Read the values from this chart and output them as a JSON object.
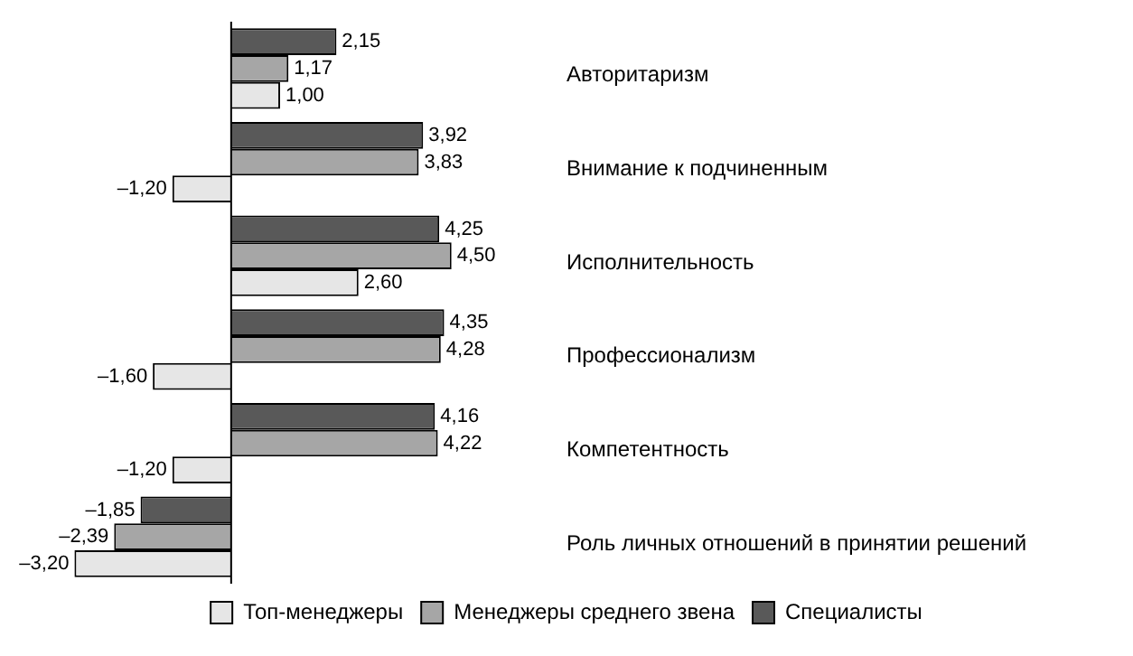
{
  "chart_data": {
    "type": "bar",
    "orientation": "horizontal",
    "categories": [
      "Авторитаризм",
      "Внимание к подчиненным",
      "Исполнительность",
      "Профессионализм",
      "Компетентность",
      "Роль личных отношений в принятии решений"
    ],
    "series": [
      {
        "name": "Топ-менеджеры",
        "color": "#e6e6e6",
        "values": [
          1.0,
          -1.2,
          2.6,
          -1.6,
          -1.2,
          -3.2
        ],
        "value_labels": [
          "1,00",
          "–1,20",
          "2,60",
          "–1,60",
          "–1,20",
          "–3,20"
        ]
      },
      {
        "name": "Менеджеры среднего звена",
        "color": "#a6a6a6",
        "values": [
          1.17,
          3.83,
          4.5,
          4.28,
          4.22,
          -2.39
        ],
        "value_labels": [
          "1,17",
          "3,83",
          "4,50",
          "4,28",
          "4,22",
          "–2,39"
        ]
      },
      {
        "name": "Специалисты",
        "color": "#595959",
        "values": [
          2.15,
          3.92,
          4.25,
          4.35,
          4.16,
          -1.85
        ],
        "value_labels": [
          "2,15",
          "3,92",
          "4,25",
          "4,35",
          "4,16",
          "–1,85"
        ]
      }
    ],
    "legend": "bottom"
  }
}
